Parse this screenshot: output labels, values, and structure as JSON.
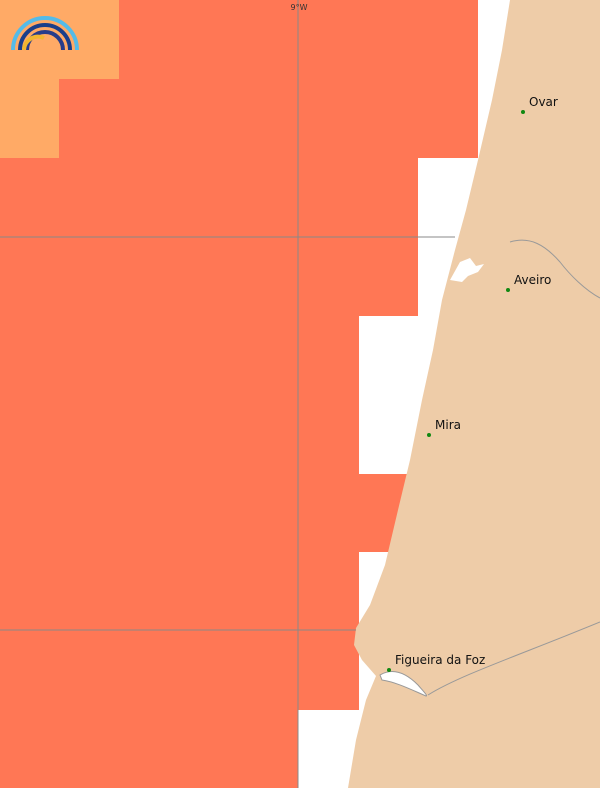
{
  "grid_label": "9°W",
  "places": [
    {
      "label": "Ovar"
    },
    {
      "label": "Aveiro"
    },
    {
      "label": "Mira"
    },
    {
      "label": "Figueira da Foz"
    }
  ]
}
